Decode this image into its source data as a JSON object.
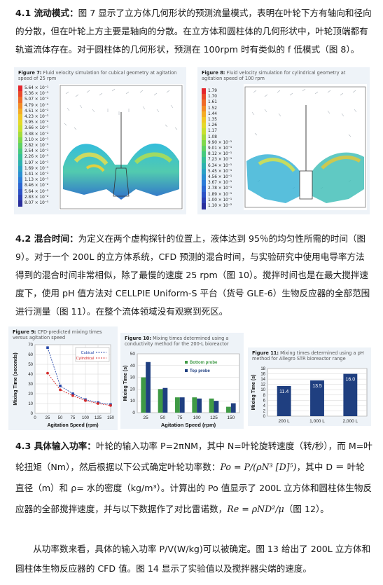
{
  "sec41": {
    "heading": "4.1 流动模式：",
    "text": "图 7 显示了立方体几何形状的预测流量模式，表明在叶轮下方有轴向和径向的分散，但在叶轮上方主要是轴向的分散。在立方体和圆柱体的几何形状中，叶轮顶端都有轨道流体存在。对于圆柱体的几何形状，预测在 100rpm 时有类似的 f 低模式（图 8）。"
  },
  "fig7": {
    "label": "Figure 7:",
    "caption": "Fluid velocity simulation for cubical geometry at agitation speed of 25 rpm",
    "legend": [
      "5.64 × 10⁻¹",
      "5.36 × 10⁻¹",
      "5.07 × 10⁻¹",
      "4.79 × 10⁻¹",
      "4.51 × 10⁻¹",
      "4.23 × 10⁻¹",
      "3.95 × 10⁻¹",
      "3.66 × 10⁻¹",
      "3.38 × 10⁻¹",
      "3.10 × 10⁻¹",
      "2.82 × 10⁻¹",
      "2.54 × 10⁻¹",
      "2.26 × 10⁻¹",
      "1.97 × 10⁻¹",
      "1.69 × 10⁻¹",
      "1.41 × 10⁻¹",
      "1.13 × 10⁻¹",
      "8.46 × 10⁻²",
      "5.64 × 10⁻²",
      "2.83 × 10⁻²",
      "8.07 × 10⁻⁵"
    ]
  },
  "fig8": {
    "label": "Figure 8:",
    "caption": "Fluid velocity simulation for cylindrical geometry at agitation speed of 100 rpm",
    "legend": [
      "1.79",
      "1.70",
      "1.61",
      "1.52",
      "1.44",
      "1.35",
      "1.26",
      "1.17",
      "1.08",
      "9.90 × 10⁻¹",
      "9.01 × 10⁻¹",
      "8.12 × 10⁻¹",
      "7.23 × 10⁻¹",
      "6.34 × 10⁻¹",
      "5.45 × 10⁻¹",
      "4.56 × 10⁻¹",
      "3.67 × 10⁻¹",
      "2.78 × 10⁻¹",
      "1.89 × 10⁻¹",
      "1.00 × 10⁻¹",
      "1.10 × 10⁻²"
    ]
  },
  "sec42": {
    "heading": "4.2 混合时间：",
    "text": "为定义在两个虚构探针的位置上，液体达到 95％的均匀性所需的时间（图 9）。对于一个 200L 的立方体系统，CFD 预测的混合时间，与实验研究中使用电导率方法得到的混合时间非常相似，除了最慢的速度 25 rpm（图 10）。搅拌时间也是在最大搅拌速度下，使用 pH 值方法对 CELLPIE Uniform-S 平台（货号 GLE-6）生物反应器的全部范围进行测量（图 11）。在整个流体领域没有观察到死区。"
  },
  "fig9": {
    "label": "Figure 9:",
    "caption": "CFD-predicted mixing times versus agitation speed"
  },
  "fig10": {
    "label": "Figure 10:",
    "caption": "Mixing times determined using a conductivity method for the 200-L bioreactor"
  },
  "fig11": {
    "label": "Figure 11:",
    "caption": "Mixing times determined using a pH method for Allegro STR bioreactor range"
  },
  "chart_data": [
    {
      "type": "line",
      "x": [
        25,
        50,
        75,
        100,
        125,
        150
      ],
      "series": [
        {
          "name": "Cubical",
          "values": [
            67,
            28,
            20,
            14,
            11,
            9
          ]
        },
        {
          "name": "Cylindrical",
          "values": [
            41,
            24,
            18,
            13,
            10,
            8
          ]
        }
      ],
      "xlabel": "Agitation Speed (rpm)",
      "ylabel": "Mixing Time (seconds)",
      "xlim": [
        0,
        150
      ],
      "ylim": [
        0,
        70
      ],
      "xticks": [
        "0",
        "25",
        "50",
        "75",
        "100",
        "125",
        "150"
      ],
      "yticks": [
        "0",
        "10",
        "20",
        "30",
        "40",
        "50",
        "60",
        "70"
      ],
      "grid": true,
      "legend": "top-right",
      "colors": {
        "Cubical": "#2244a8",
        "Cylindrical": "#d42a2a"
      }
    },
    {
      "type": "bar",
      "categories": [
        "25",
        "50",
        "75",
        "100",
        "125",
        "150"
      ],
      "series": [
        {
          "name": "Bottom probe",
          "values": [
            30,
            20,
            13,
            13,
            12,
            5
          ]
        },
        {
          "name": "Top probe",
          "values": [
            43,
            21,
            13,
            12,
            10,
            8
          ]
        }
      ],
      "xlabel": "Agitation Speed (rpm)",
      "ylabel": "Mixing Time (s)",
      "ylim": [
        0,
        50
      ],
      "yticks": [
        "0",
        "10",
        "20",
        "30",
        "40",
        "50"
      ],
      "grid": true,
      "legend": "top-right",
      "colors": {
        "Bottom probe": "#3f9a45",
        "Top probe": "#1f3f80"
      }
    },
    {
      "type": "bar",
      "categories": [
        "200 L",
        "1,000 L",
        "2,000 L"
      ],
      "values": [
        11.4,
        13.5,
        16.0
      ],
      "data_labels": [
        "11.4",
        "13.5",
        "16.0"
      ],
      "ylabel": "Mixing Time (s)",
      "ylim": [
        0,
        18
      ],
      "yticks": [
        "0",
        "2",
        "4",
        "6",
        "8",
        "10",
        "12",
        "14",
        "16",
        "18"
      ],
      "grid": true,
      "colors": {
        "bar": "#1f3f80"
      }
    }
  ],
  "sec43": {
    "heading": "4.3 具体输入功率：",
    "text1": "叶轮的输入功率 P=2πNM，其中 N=叶轮旋转速度（转/秒），而 M=叶轮扭矩（Nm），然后根据以下公式确定叶轮功率数：",
    "formula1": "Po = P/(ρN³ [D]⁵)",
    "text2": "，其中 D ＝ 叶轮直径（m）和 ρ= 水的密度（kg/m³）。计算出的 Po 值显示了 200L 立方体和圆柱体生物反应器的全部搅拌速度，并与以下数据作了对比雷诺数，",
    "formula2": "Re = ρND²/μ",
    "text3": "（图 12）。"
  },
  "last_para": "从功率数来看，具体的输入功率 P/V(W/kg)可以被确定。图 13 给出了 200L 立方体和圆柱体生物反应器的 CFD 值。图 14 显示了实验值以及搅拌器尖端的速度。"
}
